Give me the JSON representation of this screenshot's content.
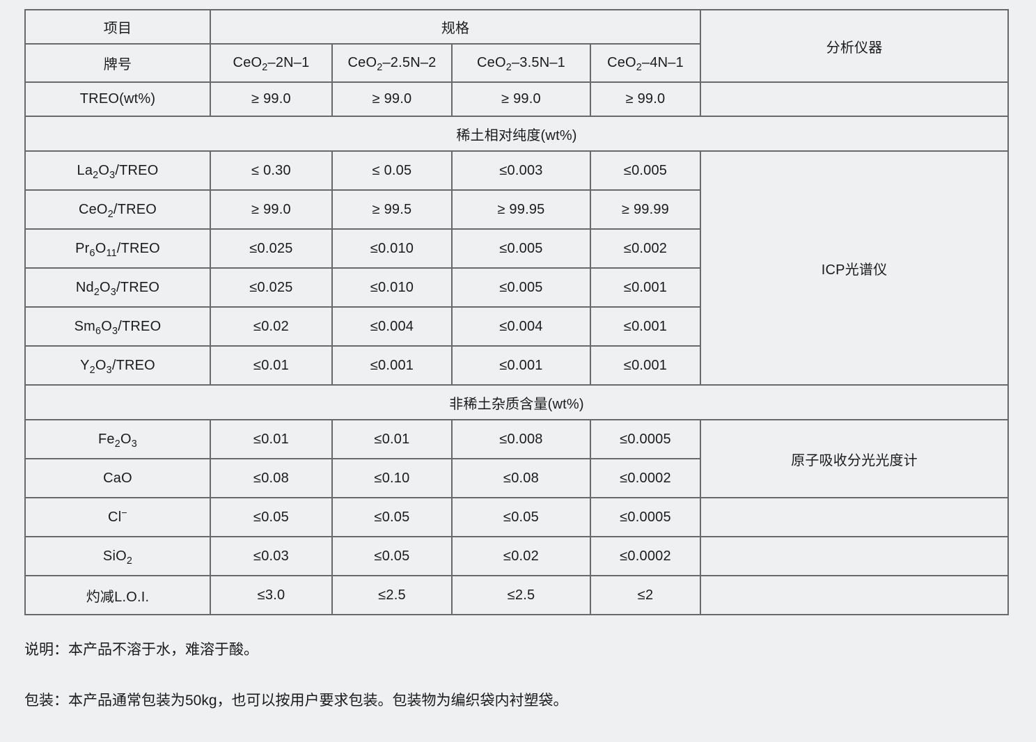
{
  "colors": {
    "page_background": "#eef0f2",
    "table_border": "#696969",
    "text": "#1b1b1b"
  },
  "table": {
    "header": {
      "item_label": "项目",
      "spec_label": "规格",
      "instrument_label": "分析仪器",
      "grade_label": "牌号",
      "grades": [
        "CeO_2_–2N–1",
        "CeO_2_–2.5N–2",
        "CeO_2_–3.5N–1",
        "CeO_2_–4N–1"
      ]
    },
    "treo_row": {
      "label": "TREO(wt%)",
      "values": [
        "≥ 99.0",
        "≥ 99.0",
        "≥ 99.0",
        "≥ 99.0"
      ],
      "instrument": ""
    },
    "section_rare_earth": {
      "title": "稀土相对纯度(wt%)",
      "instrument": "ICP光谱仪",
      "rows": [
        {
          "label": "La_2_O_3_/TREO",
          "values": [
            "≤ 0.30",
            "≤ 0.05",
            "≤0.003",
            "≤0.005"
          ]
        },
        {
          "label": "CeO_2_/TREO",
          "values": [
            "≥ 99.0",
            "≥ 99.5",
            "≥ 99.95",
            "≥ 99.99"
          ]
        },
        {
          "label": "Pr_6_O_11_/TREO",
          "values": [
            "≤0.025",
            "≤0.010",
            "≤0.005",
            "≤0.002"
          ]
        },
        {
          "label": "Nd_2_O_3_/TREO",
          "values": [
            "≤0.025",
            "≤0.010",
            "≤0.005",
            "≤0.001"
          ]
        },
        {
          "label": "Sm_6_O_3_/TREO",
          "values": [
            "≤0.02",
            "≤0.004",
            "≤0.004",
            "≤0.001"
          ]
        },
        {
          "label": "Y_2_O_3_/TREO",
          "values": [
            "≤0.01",
            "≤0.001",
            "≤0.001",
            "≤0.001"
          ]
        }
      ]
    },
    "section_impurity": {
      "title": "非稀土杂质含量(wt%)",
      "instrument": "原子吸收分光光度计",
      "rows": [
        {
          "label": "Fe_2_O_3_",
          "values": [
            "≤0.01",
            "≤0.01",
            "≤0.008",
            "≤0.0005"
          ]
        },
        {
          "label": "CaO",
          "values": [
            "≤0.08",
            "≤0.10",
            "≤0.08",
            "≤0.0002"
          ]
        },
        {
          "label": "Cl^−^",
          "values": [
            "≤0.05",
            "≤0.05",
            "≤0.05",
            "≤0.0005"
          ]
        },
        {
          "label": "SiO_2_",
          "values": [
            "≤0.03",
            "≤0.05",
            "≤0.02",
            "≤0.0002"
          ]
        },
        {
          "label": "灼减L.O.I.",
          "values": [
            "≤3.0",
            "≤2.5",
            "≤2.5",
            "≤2"
          ]
        }
      ]
    }
  },
  "notes": {
    "description": "说明：本产品不溶于水，难溶于酸。",
    "packaging": "包装：本产品通常包装为50kg，也可以按用户要求包装。包装物为编织袋内衬塑袋。"
  }
}
